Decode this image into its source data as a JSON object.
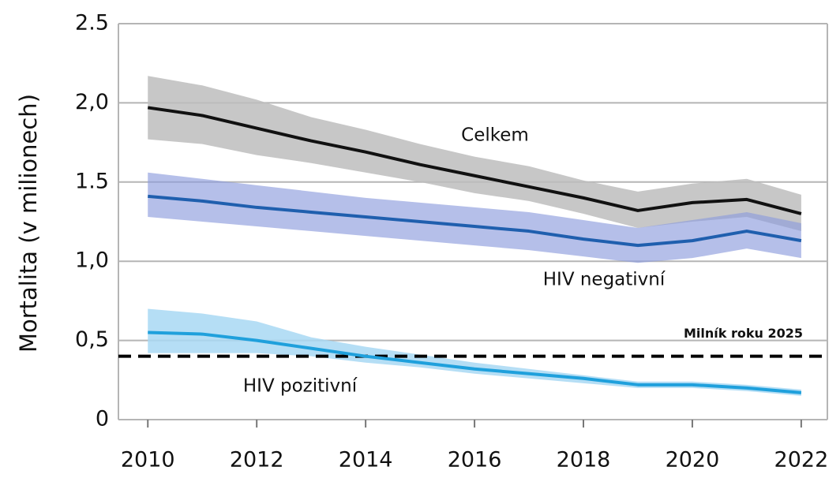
{
  "chart_data": {
    "type": "line",
    "y_label": "Mortalita (v milionech)",
    "x": [
      2010,
      2011,
      2012,
      2013,
      2014,
      2015,
      2016,
      2017,
      2018,
      2019,
      2020,
      2021,
      2022
    ],
    "xlim": [
      2009.46,
      2022.48
    ],
    "xticks": [
      2010,
      2012,
      2014,
      2016,
      2018,
      2020,
      2022
    ],
    "ylim": [
      0,
      2.5
    ],
    "yticks": [
      0,
      {
        "value": 0.5,
        "label": "0,5"
      },
      {
        "value": 1,
        "label": "1,0"
      },
      1.5,
      {
        "value": 2,
        "label": "2,0"
      },
      2.5
    ],
    "grid": true,
    "series": [
      {
        "name": "Celkem",
        "color": "#111111",
        "band_color": "#bdbdbd",
        "values": [
          1.97,
          1.92,
          1.84,
          1.76,
          1.69,
          1.61,
          1.54,
          1.47,
          1.4,
          1.32,
          1.37,
          1.39,
          1.3
        ],
        "lower": [
          1.77,
          1.74,
          1.67,
          1.62,
          1.56,
          1.5,
          1.43,
          1.38,
          1.3,
          1.21,
          1.25,
          1.28,
          1.19
        ],
        "upper": [
          2.17,
          2.11,
          2.02,
          1.91,
          1.83,
          1.74,
          1.66,
          1.6,
          1.51,
          1.44,
          1.49,
          1.52,
          1.42
        ]
      },
      {
        "name": "HIV negativní",
        "color": "#1f5fae",
        "band_color": "#8e9ddd",
        "values": [
          1.41,
          1.38,
          1.34,
          1.31,
          1.28,
          1.25,
          1.22,
          1.19,
          1.14,
          1.1,
          1.13,
          1.19,
          1.13
        ],
        "lower": [
          1.28,
          1.25,
          1.22,
          1.19,
          1.16,
          1.13,
          1.1,
          1.07,
          1.03,
          0.99,
          1.02,
          1.08,
          1.02
        ],
        "upper": [
          1.56,
          1.52,
          1.48,
          1.44,
          1.4,
          1.37,
          1.34,
          1.31,
          1.26,
          1.21,
          1.26,
          1.31,
          1.24
        ]
      },
      {
        "name": "HIV pozitivní",
        "color": "#1fa0dc",
        "band_color": "#a8d8f3",
        "values": [
          0.55,
          0.54,
          0.5,
          0.45,
          0.4,
          0.36,
          0.32,
          0.29,
          0.26,
          0.22,
          0.22,
          0.2,
          0.17
        ],
        "lower": [
          0.42,
          0.42,
          0.42,
          0.4,
          0.36,
          0.33,
          0.29,
          0.26,
          0.23,
          0.2,
          0.2,
          0.18,
          0.15
        ],
        "upper": [
          0.7,
          0.67,
          0.62,
          0.52,
          0.46,
          0.41,
          0.36,
          0.32,
          0.28,
          0.24,
          0.24,
          0.22,
          0.19
        ]
      }
    ],
    "milestone": {
      "label": "Milník roku 2025",
      "value": 0.4
    }
  }
}
